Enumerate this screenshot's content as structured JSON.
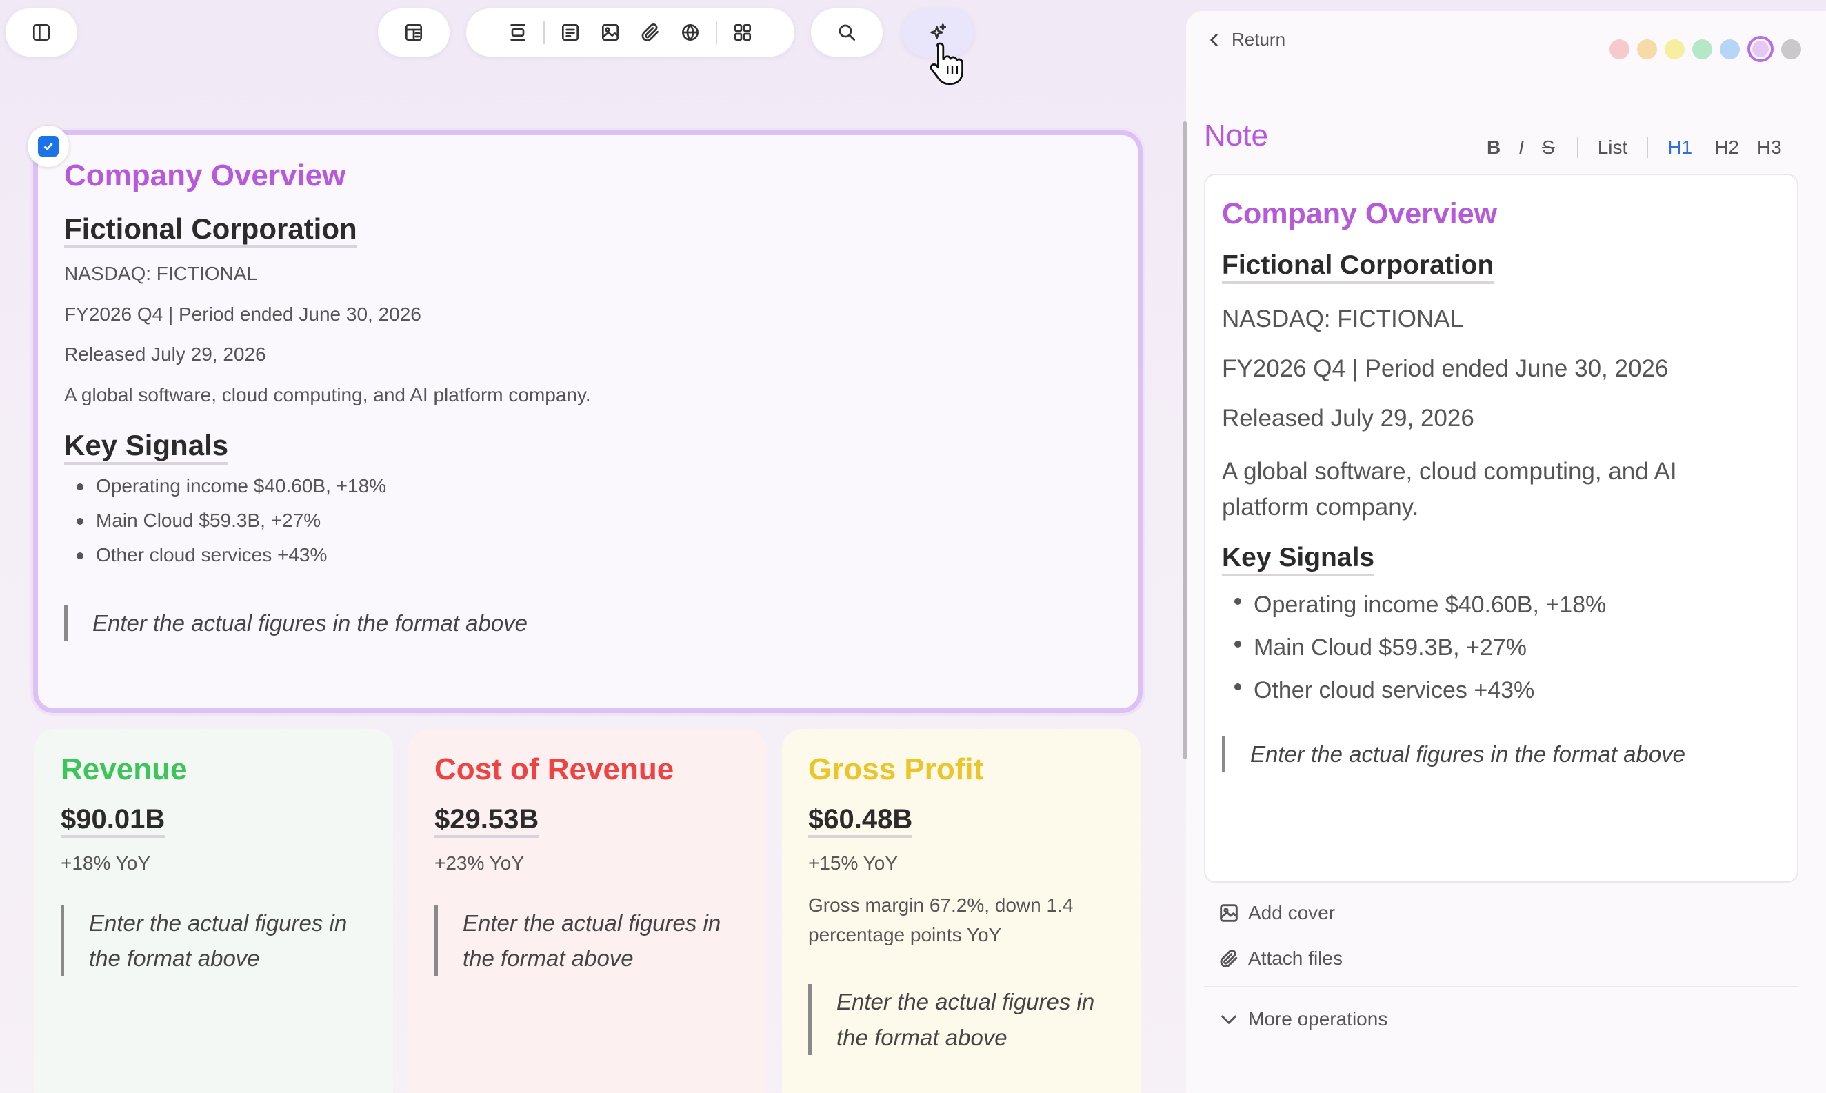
{
  "toolbar": {
    "colors": {
      "bg": "#ffffff",
      "ai_bg": "#e9e6fb"
    }
  },
  "overview": {
    "title": "Company Overview",
    "title_color": "#b659db",
    "company": "Fictional Corporation",
    "ticker": "NASDAQ: FICTIONAL",
    "period": "FY2026 Q4 | Period ended June 30, 2026",
    "released": "Released July 29, 2026",
    "description": "A global software, cloud computing, and AI platform company.",
    "signals_heading": "Key Signals",
    "signals": [
      "Operating income $40.60B, +18%",
      "Main Cloud $59.3B, +27%",
      "Other cloud services +43%"
    ],
    "quote": "Enter the actual figures in the format above"
  },
  "cards": [
    {
      "title": "Revenue",
      "title_color": "#3ec45a",
      "bg": "#f3f8f5",
      "amount": "$90.01B",
      "yoy": "+18% YoY",
      "quote_line1": "Enter the actual figures in",
      "quote_line2": "the format above"
    },
    {
      "title": "Cost of Revenue",
      "title_color": "#ee4343",
      "bg": "#fdf0f0",
      "amount": "$29.53B",
      "yoy": "+23% YoY",
      "quote_line1": "Enter the actual figures in",
      "quote_line2": "the format above"
    },
    {
      "title": "Gross Profit",
      "title_color": "#ecc52b",
      "bg": "#fdfaec",
      "amount": "$60.48B",
      "yoy": "+15% YoY",
      "margin_line1": "Gross margin 67.2%, down 1.4",
      "margin_line2": "percentage points YoY",
      "quote_line1": "Enter the actual figures in",
      "quote_line2": "the format above"
    }
  ],
  "panel": {
    "return_label": "Return",
    "note_label": "Note",
    "note_label_color": "#b659db",
    "swatches": [
      "#f6c9cd",
      "#f8d9a8",
      "#f7ef9f",
      "#b6e8c7",
      "#b5d6f7",
      "#e7c8f5",
      "#c9c9cc"
    ],
    "selected_swatch": 5,
    "format": {
      "bold": "B",
      "italic": "I",
      "strike": "S",
      "list": "List",
      "h1": "H1",
      "h2": "H2",
      "h3": "H3"
    },
    "note": {
      "title": "Company Overview",
      "company": "Fictional Corporation",
      "ticker": "NASDAQ: FICTIONAL",
      "period": "FY2026 Q4 | Period ended June 30, 2026",
      "released": "Released July 29, 2026",
      "desc_line1": "A global software, cloud computing, and AI",
      "desc_line2": "platform company.",
      "signals_heading": "Key Signals",
      "signals": [
        "Operating income $40.60B, +18%",
        "Main Cloud $59.3B, +27%",
        "Other cloud services +43%"
      ],
      "quote": "Enter the actual figures in the format above"
    },
    "add_cover": "Add cover",
    "attach_files": "Attach files",
    "more_operations": "More operations"
  }
}
